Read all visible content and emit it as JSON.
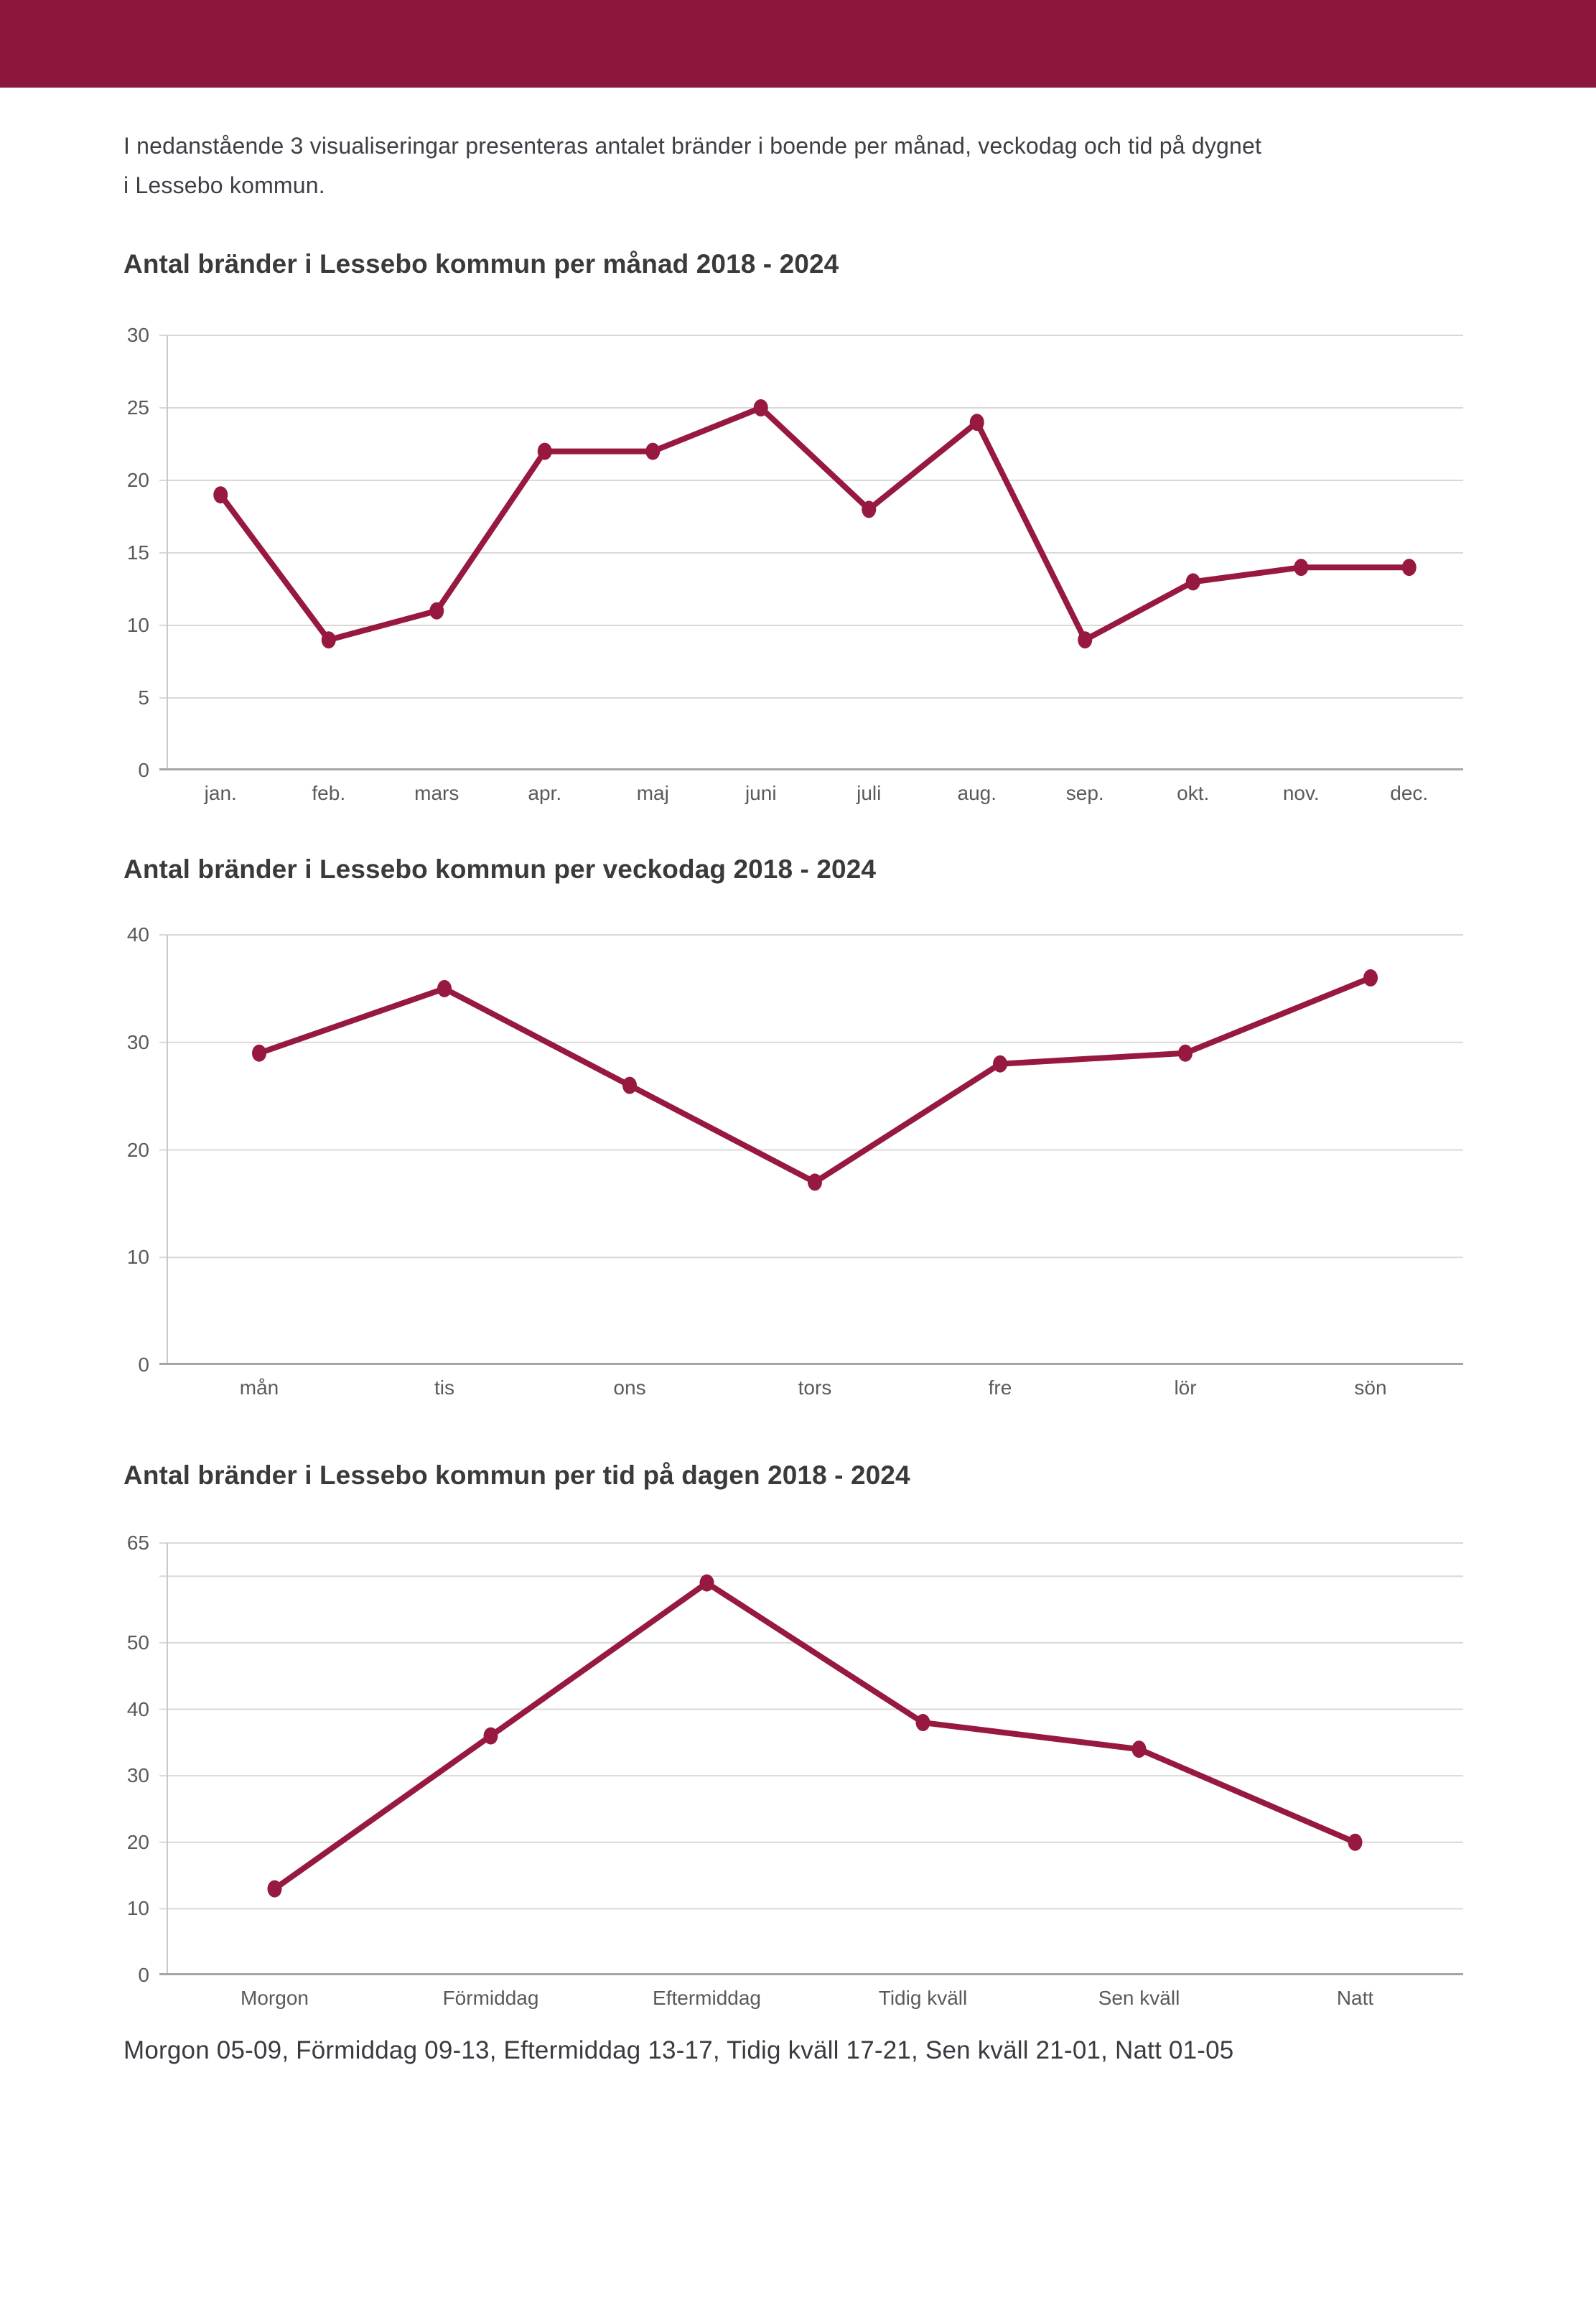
{
  "page": {
    "header_color": "#8C163C",
    "accent_color": "#97193F"
  },
  "intro": {
    "line1": "I nedanstående 3 visualiseringar presenteras antalet bränder i boende per månad, veckodag och tid på dygnet",
    "line2": "i Lessebo kommun.",
    "text": "I nedanstående 3 visualiseringar presenteras antalet bränder i boende per månad, veckodag och tid på dygnet i Lessebo kommun."
  },
  "footnote": {
    "text": "Morgon 05-09, Förmiddag 09-13, Eftermiddag 13-17, Tidig kväll 17-21, Sen kväll 21-01, Natt 01-05"
  },
  "chart_data": [
    {
      "type": "line",
      "title": "Antal bränder i Lessebo kommun per månad 2018 - 2024",
      "categories": [
        "jan.",
        "feb.",
        "mars",
        "apr.",
        "maj",
        "juni",
        "juli",
        "aug.",
        "sep.",
        "okt.",
        "nov.",
        "dec."
      ],
      "values": [
        19,
        9,
        11,
        22,
        22,
        25,
        18,
        24,
        9,
        13,
        14,
        14
      ],
      "xlabel": "",
      "ylabel": "",
      "ylim": [
        0,
        30
      ],
      "yticks": [
        0,
        5,
        10,
        15,
        20,
        25,
        30
      ],
      "gridlines": [
        5,
        10,
        15,
        20,
        25,
        30
      ],
      "grid": true,
      "legend": false,
      "line_color": "#97193F"
    },
    {
      "type": "line",
      "title": "Antal bränder i Lessebo kommun per veckodag 2018 - 2024",
      "categories": [
        "mån",
        "tis",
        "ons",
        "tors",
        "fre",
        "lör",
        "sön"
      ],
      "values": [
        29,
        35,
        26,
        17,
        28,
        29,
        36
      ],
      "xlabel": "",
      "ylabel": "",
      "ylim": [
        0,
        40
      ],
      "yticks": [
        0,
        10,
        20,
        30,
        40
      ],
      "gridlines": [
        10,
        20,
        30,
        40
      ],
      "grid": true,
      "legend": false,
      "line_color": "#97193F"
    },
    {
      "type": "line",
      "title": "Antal bränder i Lessebo kommun per tid på dagen 2018 - 2024",
      "categories": [
        "Morgon",
        "Förmiddag",
        "Eftermiddag",
        "Tidig kväll",
        "Sen kväll",
        "Natt"
      ],
      "values": [
        13,
        36,
        59,
        38,
        34,
        20
      ],
      "xlabel": "",
      "ylabel": "",
      "ylim": [
        0,
        65
      ],
      "yticks": [
        0,
        10,
        20,
        30,
        40,
        50,
        65
      ],
      "gridlines": [
        10,
        20,
        30,
        40,
        50,
        60,
        65
      ],
      "grid": true,
      "legend": false,
      "line_color": "#97193F"
    }
  ]
}
